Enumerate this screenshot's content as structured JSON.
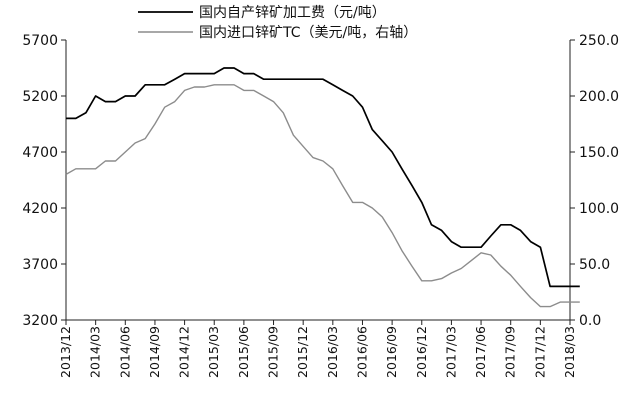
{
  "chart_data": {
    "type": "line",
    "categories": [
      "2013/12",
      "2014/03",
      "2014/06",
      "2014/09",
      "2014/12",
      "2015/03",
      "2015/06",
      "2015/09",
      "2015/12",
      "2016/03",
      "2016/06",
      "2016/09",
      "2016/12",
      "2017/03",
      "2017/06",
      "2017/09",
      "2017/12",
      "2018/03"
    ],
    "left_axis": {
      "ylim": [
        3200,
        5700
      ],
      "ticks": [
        "5700",
        "5200",
        "4700",
        "4200",
        "3700",
        "3200"
      ]
    },
    "right_axis": {
      "ylim": [
        0,
        250
      ],
      "ticks": [
        "250.0",
        "200.0",
        "150.0",
        "100.0",
        "50.0",
        "0.0"
      ]
    },
    "series": [
      {
        "name": "国内自产锌矿加工费（元/吨）",
        "axis": "left",
        "color": "#000000",
        "x": [
          0,
          0.33,
          0.67,
          1,
          1.33,
          1.67,
          2,
          2.33,
          2.67,
          3,
          3.33,
          3.67,
          4,
          4.33,
          4.67,
          5,
          5.33,
          5.67,
          6,
          6.33,
          6.67,
          7,
          7.33,
          7.67,
          8,
          8.33,
          8.67,
          9,
          9.33,
          9.67,
          10,
          10.33,
          10.67,
          11,
          11.33,
          11.67,
          12,
          12.33,
          12.67,
          13,
          13.33,
          13.67,
          14,
          14.33,
          14.67,
          15,
          15.33,
          15.67,
          16,
          16.33,
          16.67,
          17,
          17.33
        ],
        "values": [
          5000,
          5000,
          5050,
          5200,
          5150,
          5150,
          5200,
          5200,
          5300,
          5300,
          5300,
          5350,
          5400,
          5400,
          5400,
          5400,
          5450,
          5450,
          5400,
          5400,
          5350,
          5350,
          5350,
          5350,
          5350,
          5350,
          5350,
          5300,
          5250,
          5200,
          5100,
          4900,
          4800,
          4700,
          4550,
          4400,
          4250,
          4050,
          4000,
          3900,
          3850,
          3850,
          3850,
          3950,
          4050,
          4050,
          4000,
          3900,
          3850,
          3500,
          3500,
          3500,
          3500
        ]
      },
      {
        "name": "国内进口锌矿TC（美元/吨，右轴）",
        "axis": "right",
        "color": "#8c8c8c",
        "x": [
          0,
          0.33,
          0.67,
          1,
          1.33,
          1.67,
          2,
          2.33,
          2.67,
          3,
          3.33,
          3.67,
          4,
          4.33,
          4.67,
          5,
          5.33,
          5.67,
          6,
          6.33,
          6.67,
          7,
          7.33,
          7.67,
          8,
          8.33,
          8.67,
          9,
          9.33,
          9.67,
          10,
          10.33,
          10.67,
          11,
          11.33,
          11.67,
          12,
          12.33,
          12.67,
          13,
          13.33,
          13.67,
          14,
          14.33,
          14.67,
          15,
          15.33,
          15.67,
          16,
          16.33,
          16.67,
          17,
          17.33
        ],
        "values": [
          130,
          135,
          135,
          135,
          142,
          142,
          150,
          158,
          162,
          175,
          190,
          195,
          205,
          208,
          208,
          210,
          210,
          210,
          205,
          205,
          200,
          195,
          185,
          165,
          155,
          145,
          142,
          135,
          120,
          105,
          105,
          100,
          92,
          78,
          62,
          48,
          35,
          35,
          37,
          42,
          46,
          53,
          60,
          58,
          48,
          40,
          30,
          20,
          12,
          12,
          16,
          16,
          16
        ]
      }
    ]
  }
}
